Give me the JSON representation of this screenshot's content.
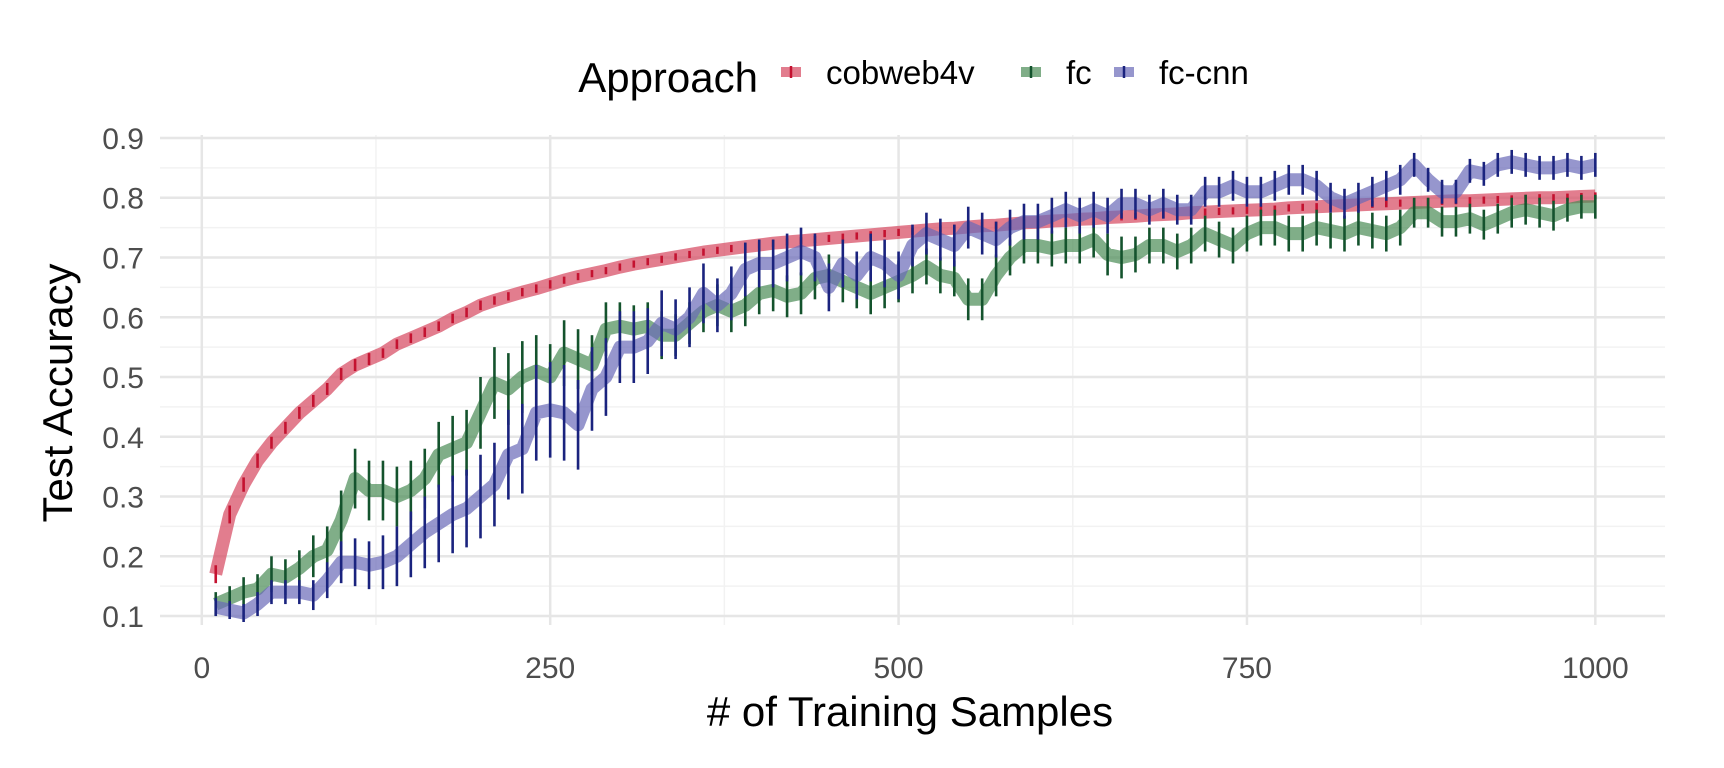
{
  "chart_data": {
    "type": "line",
    "title": "",
    "xlabel": "# of Training Samples",
    "ylabel": "Test Accuracy",
    "xlim": [
      -30,
      1050
    ],
    "ylim": [
      0.085,
      0.905
    ],
    "x_ticks": [
      0,
      250,
      500,
      750,
      1000
    ],
    "x_tick_labels": [
      "0",
      "250",
      "500",
      "750",
      "1000"
    ],
    "y_ticks": [
      0.1,
      0.2,
      0.3,
      0.4,
      0.5,
      0.6,
      0.7,
      0.8,
      0.9
    ],
    "y_tick_labels": [
      "0.1",
      "0.2",
      "0.3",
      "0.4",
      "0.5",
      "0.6",
      "0.7",
      "0.8",
      "0.9"
    ],
    "grid": true,
    "error_bars": true,
    "legend": {
      "title": "Approach",
      "position": "top"
    },
    "series": [
      {
        "name": "cobweb4v",
        "color": "#d6465e",
        "errcolor": "#c41230",
        "x": [
          10,
          20,
          30,
          40,
          50,
          60,
          70,
          80,
          90,
          100,
          110,
          120,
          130,
          140,
          150,
          160,
          170,
          180,
          190,
          200,
          210,
          220,
          230,
          240,
          250,
          260,
          270,
          280,
          290,
          300,
          310,
          320,
          330,
          340,
          350,
          360,
          370,
          380,
          390,
          400,
          410,
          420,
          430,
          440,
          450,
          460,
          470,
          480,
          490,
          500,
          510,
          520,
          530,
          540,
          550,
          560,
          570,
          580,
          590,
          600,
          610,
          620,
          630,
          640,
          650,
          660,
          670,
          680,
          690,
          700,
          710,
          720,
          730,
          740,
          750,
          760,
          770,
          780,
          790,
          800,
          810,
          820,
          830,
          840,
          850,
          860,
          870,
          880,
          890,
          900,
          910,
          920,
          930,
          940,
          950,
          960,
          970,
          980,
          990,
          1000
        ],
        "y": [
          0.17,
          0.27,
          0.32,
          0.36,
          0.39,
          0.415,
          0.44,
          0.46,
          0.48,
          0.505,
          0.52,
          0.53,
          0.54,
          0.555,
          0.565,
          0.575,
          0.585,
          0.598,
          0.608,
          0.62,
          0.628,
          0.635,
          0.642,
          0.648,
          0.655,
          0.662,
          0.668,
          0.673,
          0.678,
          0.684,
          0.689,
          0.693,
          0.697,
          0.701,
          0.705,
          0.709,
          0.712,
          0.715,
          0.718,
          0.721,
          0.724,
          0.726,
          0.728,
          0.73,
          0.732,
          0.734,
          0.736,
          0.738,
          0.74,
          0.742,
          0.744,
          0.746,
          0.748,
          0.749,
          0.751,
          0.753,
          0.754,
          0.756,
          0.758,
          0.759,
          0.761,
          0.762,
          0.764,
          0.765,
          0.767,
          0.768,
          0.769,
          0.771,
          0.772,
          0.773,
          0.775,
          0.776,
          0.777,
          0.778,
          0.779,
          0.78,
          0.781,
          0.783,
          0.784,
          0.785,
          0.786,
          0.787,
          0.788,
          0.789,
          0.79,
          0.791,
          0.792,
          0.793,
          0.794,
          0.795,
          0.795,
          0.796,
          0.797,
          0.798,
          0.799,
          0.8,
          0.8,
          0.801,
          0.802,
          0.803
        ],
        "err": [
          0.015,
          0.015,
          0.012,
          0.012,
          0.01,
          0.01,
          0.01,
          0.01,
          0.01,
          0.01,
          0.01,
          0.01,
          0.008,
          0.008,
          0.008,
          0.008,
          0.008,
          0.008,
          0.008,
          0.008,
          0.007,
          0.007,
          0.007,
          0.007,
          0.007,
          0.006,
          0.006,
          0.006,
          0.006,
          0.006,
          0.006,
          0.006,
          0.006,
          0.006,
          0.006,
          0.006,
          0.006,
          0.006,
          0.006,
          0.006,
          0.006,
          0.006,
          0.006,
          0.006,
          0.006,
          0.006,
          0.006,
          0.006,
          0.006,
          0.006,
          0.006,
          0.006,
          0.006,
          0.006,
          0.006,
          0.006,
          0.006,
          0.006,
          0.006,
          0.006,
          0.006,
          0.006,
          0.006,
          0.006,
          0.006,
          0.006,
          0.006,
          0.006,
          0.006,
          0.006,
          0.006,
          0.006,
          0.006,
          0.006,
          0.006,
          0.006,
          0.006,
          0.006,
          0.006,
          0.006,
          0.006,
          0.006,
          0.006,
          0.006,
          0.006,
          0.006,
          0.006,
          0.006,
          0.006,
          0.006,
          0.006,
          0.006,
          0.006,
          0.006,
          0.006,
          0.006,
          0.006,
          0.006,
          0.006,
          0.006
        ]
      },
      {
        "name": "fc",
        "color": "#4a8b55",
        "errcolor": "#14532d",
        "x": [
          10,
          20,
          30,
          40,
          50,
          60,
          70,
          80,
          90,
          100,
          110,
          120,
          130,
          140,
          150,
          160,
          170,
          180,
          190,
          200,
          210,
          220,
          230,
          240,
          250,
          260,
          270,
          280,
          290,
          300,
          310,
          320,
          330,
          340,
          350,
          360,
          370,
          380,
          390,
          400,
          410,
          420,
          430,
          440,
          450,
          460,
          470,
          480,
          490,
          500,
          510,
          520,
          530,
          540,
          550,
          560,
          570,
          580,
          590,
          600,
          610,
          620,
          630,
          640,
          650,
          660,
          670,
          680,
          690,
          700,
          710,
          720,
          730,
          740,
          750,
          760,
          770,
          780,
          790,
          800,
          810,
          820,
          830,
          840,
          850,
          860,
          870,
          880,
          890,
          900,
          910,
          920,
          930,
          940,
          950,
          960,
          970,
          980,
          990,
          1000
        ],
        "y": [
          0.12,
          0.13,
          0.14,
          0.145,
          0.17,
          0.165,
          0.18,
          0.2,
          0.21,
          0.26,
          0.33,
          0.31,
          0.31,
          0.3,
          0.31,
          0.33,
          0.37,
          0.38,
          0.39,
          0.44,
          0.49,
          0.48,
          0.5,
          0.51,
          0.5,
          0.54,
          0.53,
          0.52,
          0.58,
          0.585,
          0.58,
          0.585,
          0.57,
          0.57,
          0.59,
          0.61,
          0.62,
          0.61,
          0.62,
          0.64,
          0.645,
          0.635,
          0.64,
          0.665,
          0.67,
          0.66,
          0.65,
          0.64,
          0.65,
          0.66,
          0.67,
          0.685,
          0.67,
          0.665,
          0.63,
          0.63,
          0.67,
          0.7,
          0.72,
          0.72,
          0.715,
          0.72,
          0.72,
          0.73,
          0.705,
          0.7,
          0.705,
          0.72,
          0.72,
          0.71,
          0.72,
          0.74,
          0.73,
          0.72,
          0.74,
          0.75,
          0.75,
          0.74,
          0.74,
          0.75,
          0.745,
          0.74,
          0.75,
          0.745,
          0.74,
          0.75,
          0.775,
          0.775,
          0.76,
          0.76,
          0.765,
          0.755,
          0.765,
          0.775,
          0.78,
          0.775,
          0.77,
          0.78,
          0.785,
          0.785
        ],
        "err": [
          0.02,
          0.02,
          0.025,
          0.025,
          0.03,
          0.03,
          0.03,
          0.035,
          0.04,
          0.05,
          0.05,
          0.05,
          0.05,
          0.05,
          0.05,
          0.05,
          0.055,
          0.055,
          0.055,
          0.06,
          0.06,
          0.06,
          0.06,
          0.06,
          0.055,
          0.055,
          0.05,
          0.05,
          0.045,
          0.04,
          0.04,
          0.04,
          0.04,
          0.035,
          0.035,
          0.035,
          0.035,
          0.035,
          0.035,
          0.035,
          0.035,
          0.035,
          0.035,
          0.035,
          0.035,
          0.035,
          0.035,
          0.035,
          0.035,
          0.035,
          0.03,
          0.03,
          0.03,
          0.03,
          0.035,
          0.035,
          0.035,
          0.03,
          0.03,
          0.03,
          0.03,
          0.03,
          0.03,
          0.03,
          0.035,
          0.035,
          0.03,
          0.03,
          0.03,
          0.03,
          0.03,
          0.03,
          0.03,
          0.03,
          0.03,
          0.03,
          0.03,
          0.03,
          0.03,
          0.03,
          0.03,
          0.03,
          0.03,
          0.03,
          0.03,
          0.03,
          0.025,
          0.025,
          0.025,
          0.025,
          0.025,
          0.025,
          0.025,
          0.025,
          0.025,
          0.025,
          0.025,
          0.02,
          0.02,
          0.02
        ]
      },
      {
        "name": "fc-cnn",
        "color": "#6a6ab8",
        "errcolor": "#1a237e",
        "x": [
          10,
          20,
          30,
          40,
          50,
          60,
          70,
          80,
          90,
          100,
          110,
          120,
          130,
          140,
          150,
          160,
          170,
          180,
          190,
          200,
          210,
          220,
          230,
          240,
          250,
          260,
          270,
          280,
          290,
          300,
          310,
          320,
          330,
          340,
          350,
          360,
          370,
          380,
          390,
          400,
          410,
          420,
          430,
          440,
          450,
          460,
          470,
          480,
          490,
          500,
          510,
          520,
          530,
          540,
          550,
          560,
          570,
          580,
          590,
          600,
          610,
          620,
          630,
          640,
          650,
          660,
          670,
          680,
          690,
          700,
          710,
          720,
          730,
          740,
          750,
          760,
          770,
          780,
          790,
          800,
          810,
          820,
          830,
          840,
          850,
          860,
          870,
          880,
          890,
          900,
          910,
          920,
          930,
          940,
          950,
          960,
          970,
          980,
          990,
          1000
        ],
        "y": [
          0.115,
          0.11,
          0.105,
          0.12,
          0.14,
          0.14,
          0.14,
          0.135,
          0.16,
          0.19,
          0.19,
          0.185,
          0.19,
          0.2,
          0.22,
          0.24,
          0.255,
          0.27,
          0.28,
          0.3,
          0.32,
          0.37,
          0.38,
          0.44,
          0.445,
          0.44,
          0.42,
          0.48,
          0.5,
          0.55,
          0.55,
          0.56,
          0.59,
          0.58,
          0.6,
          0.64,
          0.62,
          0.64,
          0.68,
          0.69,
          0.69,
          0.7,
          0.71,
          0.7,
          0.65,
          0.69,
          0.67,
          0.7,
          0.69,
          0.67,
          0.72,
          0.74,
          0.73,
          0.72,
          0.75,
          0.74,
          0.73,
          0.75,
          0.76,
          0.76,
          0.77,
          0.78,
          0.77,
          0.78,
          0.77,
          0.79,
          0.79,
          0.78,
          0.79,
          0.78,
          0.78,
          0.81,
          0.81,
          0.82,
          0.81,
          0.81,
          0.82,
          0.83,
          0.83,
          0.82,
          0.8,
          0.79,
          0.8,
          0.81,
          0.82,
          0.83,
          0.855,
          0.83,
          0.81,
          0.81,
          0.845,
          0.84,
          0.855,
          0.86,
          0.855,
          0.85,
          0.85,
          0.855,
          0.85,
          0.855
        ],
        "err": [
          0.015,
          0.015,
          0.015,
          0.02,
          0.02,
          0.02,
          0.02,
          0.025,
          0.03,
          0.035,
          0.04,
          0.04,
          0.045,
          0.05,
          0.055,
          0.06,
          0.065,
          0.065,
          0.065,
          0.07,
          0.07,
          0.075,
          0.075,
          0.08,
          0.08,
          0.08,
          0.075,
          0.07,
          0.065,
          0.06,
          0.06,
          0.055,
          0.055,
          0.05,
          0.05,
          0.05,
          0.045,
          0.045,
          0.045,
          0.04,
          0.04,
          0.04,
          0.04,
          0.04,
          0.04,
          0.04,
          0.04,
          0.04,
          0.04,
          0.04,
          0.035,
          0.035,
          0.035,
          0.035,
          0.035,
          0.035,
          0.03,
          0.03,
          0.03,
          0.03,
          0.03,
          0.03,
          0.03,
          0.03,
          0.03,
          0.025,
          0.025,
          0.025,
          0.025,
          0.025,
          0.025,
          0.025,
          0.025,
          0.025,
          0.025,
          0.025,
          0.025,
          0.025,
          0.025,
          0.025,
          0.025,
          0.025,
          0.025,
          0.025,
          0.025,
          0.025,
          0.02,
          0.02,
          0.02,
          0.02,
          0.02,
          0.02,
          0.02,
          0.02,
          0.02,
          0.02,
          0.02,
          0.02,
          0.02,
          0.02
        ]
      }
    ]
  }
}
